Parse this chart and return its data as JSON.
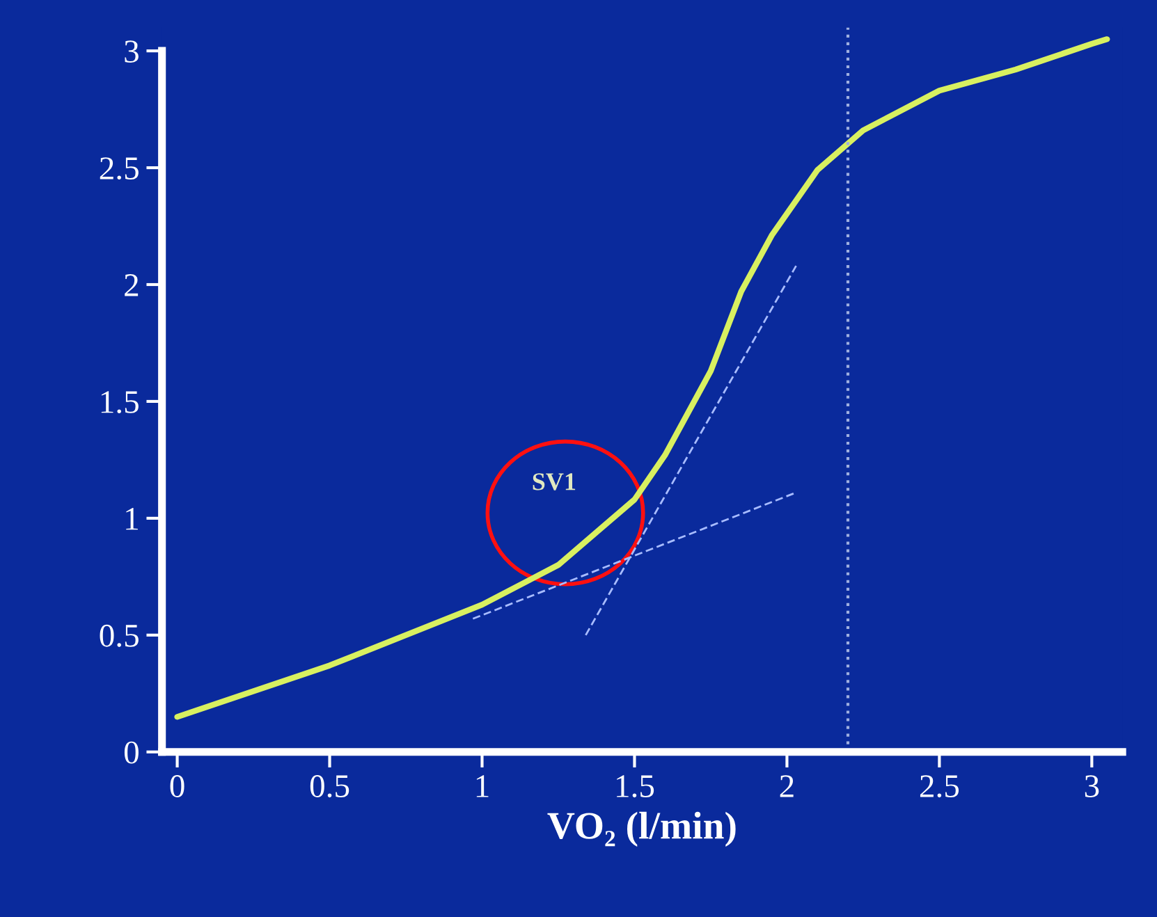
{
  "chart_data": {
    "type": "line",
    "xlabel": "VO₂ (l/min)",
    "xlim": [
      -0.05,
      3.1
    ],
    "ylim": [
      0,
      3.1
    ],
    "xticks": [
      0,
      0.5,
      1,
      1.5,
      2,
      2.5,
      3
    ],
    "yticks": [
      0,
      0.5,
      1,
      1.5,
      2,
      2.5,
      3
    ],
    "grid": false,
    "marker": "none",
    "series": [
      {
        "color": "#d8f060",
        "line_style": "solid",
        "x": [
          0,
          0.5,
          1,
          1.25,
          1.5,
          1.6,
          1.75,
          1.85,
          1.95,
          2.1,
          2.25,
          2.5,
          2.75,
          3,
          3.05
        ],
        "values": [
          0.15,
          0.37,
          0.63,
          0.8,
          1.08,
          1.27,
          1.63,
          1.97,
          2.21,
          2.49,
          2.66,
          2.83,
          2.92,
          3.03,
          3.05
        ]
      },
      {
        "color": "#a8bcff",
        "line_style": "dashed",
        "x": [
          0.97,
          2.03
        ],
        "values": [
          0.57,
          1.11
        ]
      },
      {
        "color": "#a8bcff",
        "line_style": "dashed",
        "x": [
          1.34,
          2.03
        ],
        "values": [
          0.5,
          2.08
        ]
      }
    ],
    "ref_lines": [
      {
        "axis": "x",
        "value": 2.2,
        "color": "#a0b0e0",
        "line_style": "dotted"
      }
    ],
    "annotations": [
      "SV1"
    ]
  }
}
